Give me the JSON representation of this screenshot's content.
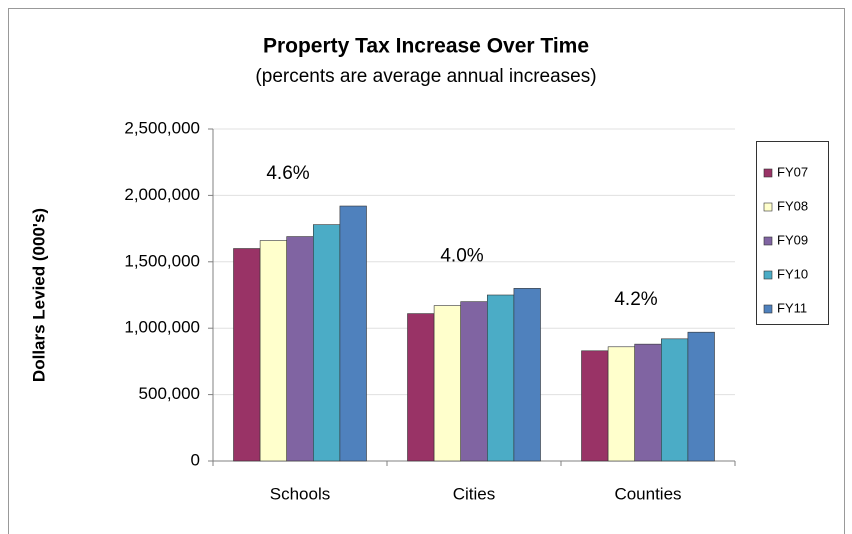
{
  "chart_data": {
    "type": "bar",
    "title": "Property Tax Increase Over Time",
    "subtitle": "(percents are average annual increases)",
    "y_label": "Dollars Levied (000's)",
    "categories": [
      "Schools",
      "Cities",
      "Counties"
    ],
    "annotations": [
      "4.6%",
      "4.0%",
      "4.2%"
    ],
    "series": [
      {
        "name": "FY07",
        "color": "#993366",
        "values": [
          1600000,
          1110000,
          830000
        ]
      },
      {
        "name": "FY08",
        "color": "#FFFFCC",
        "values": [
          1660000,
          1170000,
          860000
        ]
      },
      {
        "name": "FY09",
        "color": "#8064A2",
        "values": [
          1690000,
          1200000,
          880000
        ]
      },
      {
        "name": "FY10",
        "color": "#4BACC6",
        "values": [
          1780000,
          1250000,
          920000
        ]
      },
      {
        "name": "FY11",
        "color": "#4F81BD",
        "values": [
          1920000,
          1300000,
          970000
        ]
      }
    ],
    "ylim": [
      0,
      2500000
    ],
    "yticks": [
      0,
      {
        "value": 500000,
        "label": "500,000"
      },
      {
        "value": 1000000,
        "label": "1,000,000"
      },
      {
        "value": 1500000,
        "label": "1,500,000"
      },
      {
        "value": 2000000,
        "label": "2,000,000"
      },
      {
        "value": 2500000,
        "label": "2,500,000"
      }
    ],
    "grid": true,
    "legend": "right"
  }
}
